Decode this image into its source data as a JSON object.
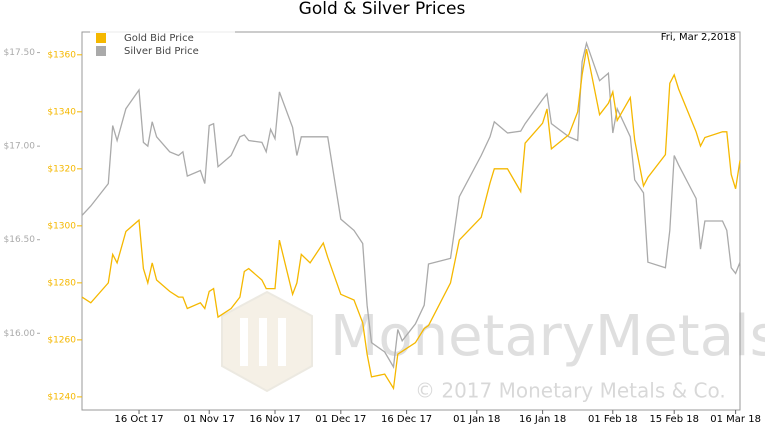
{
  "chart_data": {
    "type": "line",
    "title": "Gold & Silver Prices",
    "annotation": "Fri, Mar 2,2018",
    "watermark": "MonetaryMetals",
    "copyright": "© 2017 Monetary Metals & Co.",
    "legend": "top-left",
    "x": [
      "2017-10-03",
      "2017-10-05",
      "2017-10-09",
      "2017-10-10",
      "2017-10-11",
      "2017-10-13",
      "2017-10-16",
      "2017-10-17",
      "2017-10-18",
      "2017-10-19",
      "2017-10-20",
      "2017-10-23",
      "2017-10-25",
      "2017-10-26",
      "2017-10-27",
      "2017-10-30",
      "2017-10-31",
      "2017-11-01",
      "2017-11-02",
      "2017-11-03",
      "2017-11-06",
      "2017-11-08",
      "2017-11-09",
      "2017-11-10",
      "2017-11-13",
      "2017-11-14",
      "2017-11-15",
      "2017-11-16",
      "2017-11-17",
      "2017-11-20",
      "2017-11-21",
      "2017-11-22",
      "2017-11-24",
      "2017-11-27",
      "2017-11-28",
      "2017-12-01",
      "2017-12-04",
      "2017-12-06",
      "2017-12-07",
      "2017-12-08",
      "2017-12-11",
      "2017-12-13",
      "2017-12-14",
      "2017-12-15",
      "2017-12-18",
      "2017-12-20",
      "2017-12-21",
      "2017-12-26",
      "2017-12-28",
      "2018-01-02",
      "2018-01-04",
      "2018-01-05",
      "2018-01-08",
      "2018-01-11",
      "2018-01-12",
      "2018-01-16",
      "2018-01-17",
      "2018-01-18",
      "2018-01-22",
      "2018-01-24",
      "2018-01-25",
      "2018-01-26",
      "2018-01-29",
      "2018-01-31",
      "2018-02-01",
      "2018-02-02",
      "2018-02-05",
      "2018-02-06",
      "2018-02-08",
      "2018-02-09",
      "2018-02-13",
      "2018-02-14",
      "2018-02-15",
      "2018-02-16",
      "2018-02-20",
      "2018-02-21",
      "2018-02-22",
      "2018-02-26",
      "2018-02-27",
      "2018-02-28",
      "2018-03-01",
      "2018-03-02"
    ],
    "series": [
      {
        "name": "Gold Bid Price",
        "color": "#f5b800",
        "axis": "y2",
        "values": [
          1275,
          1273,
          1280,
          1290,
          1287,
          1298,
          1302,
          1285,
          1280,
          1287,
          1281,
          1277,
          1275,
          1275,
          1271,
          1273,
          1271,
          1277,
          1278,
          1268,
          1271,
          1275,
          1284,
          1285,
          1281,
          1278,
          1278,
          1278,
          1295,
          1276,
          1280,
          1290,
          1287,
          1294,
          1289,
          1276,
          1274,
          1266,
          1255,
          1247,
          1248,
          1243,
          1255,
          1256,
          1259,
          1264,
          1265,
          1280,
          1295,
          1303,
          1315,
          1320,
          1320,
          1312,
          1329,
          1336,
          1341,
          1327,
          1332,
          1340,
          1353,
          1362,
          1339,
          1343,
          1347,
          1337,
          1345,
          1330,
          1314,
          1317,
          1325,
          1350,
          1353,
          1348,
          1333,
          1328,
          1331,
          1333,
          1333,
          1318,
          1313,
          1323
        ]
      },
      {
        "name": "Silver Bid Price",
        "color": "#aaaaaa",
        "axis": "y",
        "values": [
          16.63,
          16.68,
          16.8,
          17.11,
          17.03,
          17.2,
          17.3,
          17.02,
          17.0,
          17.13,
          17.05,
          16.97,
          16.95,
          16.97,
          16.84,
          16.87,
          16.8,
          17.11,
          17.12,
          16.89,
          16.95,
          17.05,
          17.06,
          17.03,
          17.02,
          16.97,
          17.09,
          17.04,
          17.29,
          17.1,
          16.95,
          17.05,
          17.05,
          17.05,
          17.05,
          16.61,
          16.55,
          16.48,
          16.15,
          15.95,
          15.9,
          15.82,
          16.02,
          15.96,
          16.05,
          16.15,
          16.37,
          16.4,
          16.73,
          16.95,
          17.05,
          17.13,
          17.07,
          17.08,
          17.12,
          17.25,
          17.28,
          17.12,
          17.05,
          17.03,
          17.45,
          17.55,
          17.35,
          17.39,
          17.07,
          17.2,
          17.05,
          16.82,
          16.75,
          16.38,
          16.35,
          16.55,
          16.95,
          16.9,
          16.72,
          16.45,
          16.6,
          16.6,
          16.55,
          16.35,
          16.32,
          16.38
        ]
      }
    ],
    "xlim": [
      "2017-10-03",
      "2018-03-02"
    ],
    "xticks": [
      {
        "value": "2017-10-16",
        "label": "16 Oct 17"
      },
      {
        "value": "2017-11-01",
        "label": "01 Nov 17"
      },
      {
        "value": "2017-11-16",
        "label": "16 Nov 17"
      },
      {
        "value": "2017-12-01",
        "label": "01 Dec 17"
      },
      {
        "value": "2017-12-16",
        "label": "16 Dec 17"
      },
      {
        "value": "2018-01-01",
        "label": "01 Jan 18"
      },
      {
        "value": "2018-01-16",
        "label": "16 Jan 18"
      },
      {
        "value": "2018-02-01",
        "label": "01 Feb 18"
      },
      {
        "value": "2018-02-15",
        "label": "15 Feb 18"
      },
      {
        "value": "2018-03-01",
        "label": "01 Mar 18"
      }
    ],
    "ylim": [
      15.59,
      17.61
    ],
    "yticks": [
      {
        "value": 16,
        "label": "$16.00"
      },
      {
        "value": 16.5,
        "label": "$16.50"
      },
      {
        "value": 17,
        "label": "$17.00"
      },
      {
        "value": 17.5,
        "label": "$17.50"
      }
    ],
    "y2lim": [
      1235.4,
      1368
    ],
    "y2ticks": [
      {
        "value": 1240,
        "label": "$1240"
      },
      {
        "value": 1260,
        "label": "$1260"
      },
      {
        "value": 1280,
        "label": "$1280"
      },
      {
        "value": 1300,
        "label": "$1300"
      },
      {
        "value": 1320,
        "label": "$1320"
      },
      {
        "value": 1340,
        "label": "$1340"
      },
      {
        "value": 1360,
        "label": "$1360"
      }
    ]
  }
}
